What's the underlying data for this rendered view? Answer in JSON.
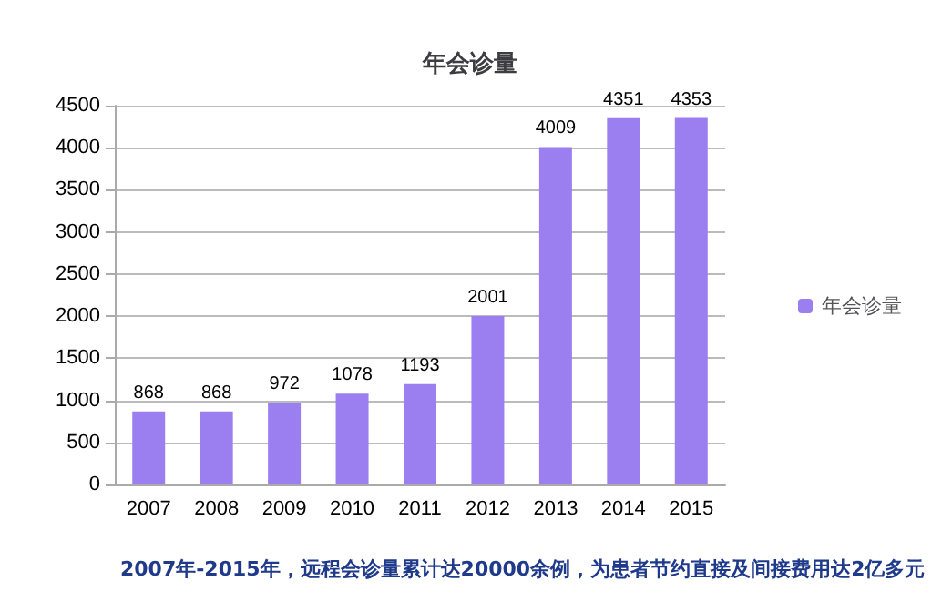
{
  "chart_data": {
    "type": "bar",
    "title": "年会诊量",
    "categories": [
      "2007",
      "2008",
      "2009",
      "2010",
      "2011",
      "2012",
      "2013",
      "2014",
      "2015"
    ],
    "series": [
      {
        "name": "年会诊量",
        "color": "#9b7ff0",
        "values": [
          868,
          868,
          972,
          1078,
          1193,
          2001,
          4009,
          4351,
          4353
        ]
      }
    ],
    "ylim": [
      0,
      4500
    ],
    "yticks": [
      0,
      500,
      1000,
      1500,
      2000,
      2500,
      3000,
      3500,
      4000,
      4500
    ],
    "grid": "y",
    "legend": "right",
    "data_labels": true,
    "annotations": [
      "2007年-2015年，远程会诊量累计达20000余例，为患者节约直接及间接费用达2亿多元"
    ]
  }
}
